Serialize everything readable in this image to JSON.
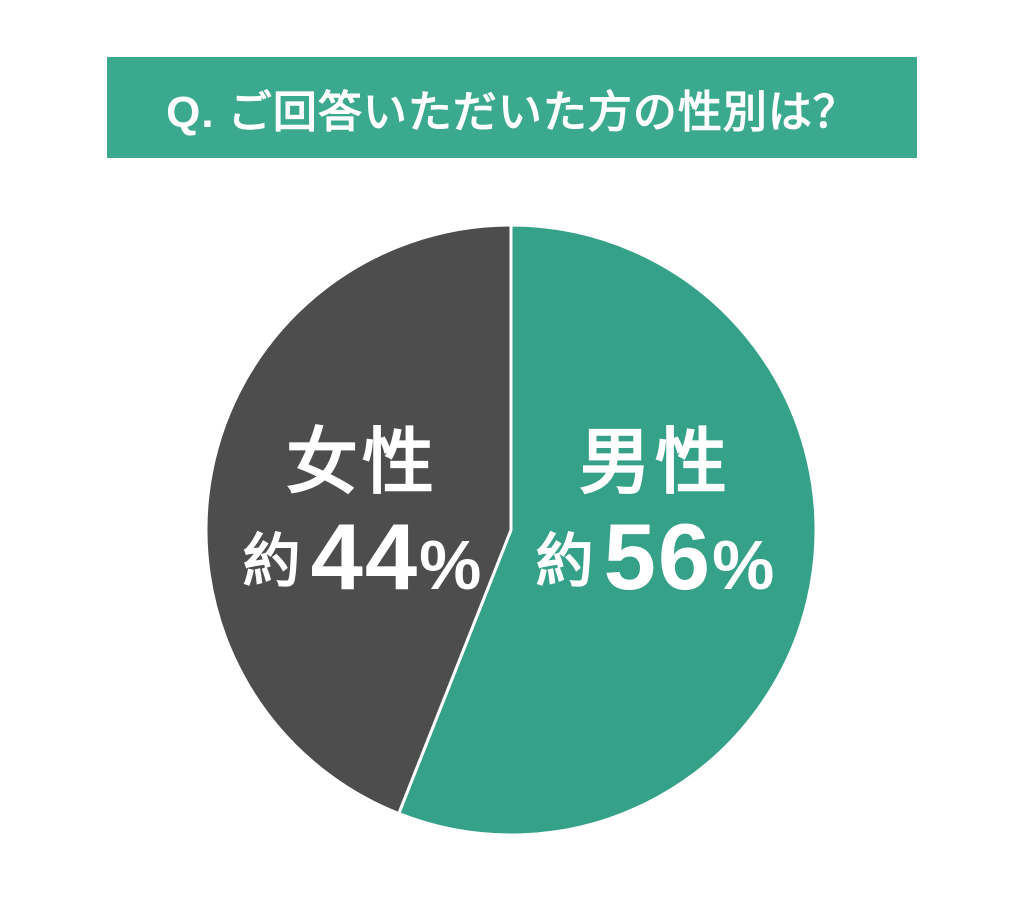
{
  "page": {
    "background": "#ffffff"
  },
  "header": {
    "title": "Q. ご回答いただいた方の性別は？",
    "background": "#3BA98D",
    "text_color": "#ffffff"
  },
  "chart_data": {
    "type": "pie",
    "title": "Q. ご回答いただいた方の性別は？",
    "legend_position": "none",
    "label_text_color": "#ffffff",
    "divider_color": "#ffffff",
    "start_at": "top, clockwise",
    "slices": [
      {
        "label": "男性",
        "approx_prefix": "約",
        "value": 56,
        "value_str": "56",
        "unit": "%",
        "display": "約56%",
        "color": "#35A189",
        "start_angle_deg": 0,
        "end_angle_deg": 201.6
      },
      {
        "label": "女性",
        "approx_prefix": "約",
        "value": 44,
        "value_str": "44",
        "unit": "%",
        "display": "約44%",
        "color": "#4D4D4D",
        "start_angle_deg": 201.6,
        "end_angle_deg": 360
      }
    ]
  }
}
